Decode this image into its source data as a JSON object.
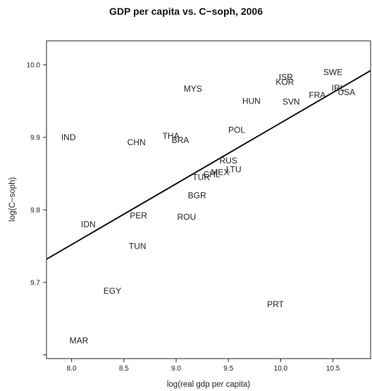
{
  "chart_data": {
    "type": "scatter",
    "title": "GDP per capita vs. C−soph, 2006",
    "xlabel": "log(real gdp per capita)",
    "ylabel": "log(C−soph)",
    "xlim": [
      7.76,
      10.86
    ],
    "ylim": [
      9.595,
      10.033
    ],
    "xticks": [
      "8.0",
      "8.5",
      "9.0",
      "9.5",
      "10.0",
      "10.5"
    ],
    "yticks": [
      "9.7",
      "9.8",
      "9.9",
      "10.0"
    ],
    "grid": false,
    "legend": "none",
    "points": [
      {
        "label": "SWE",
        "x": 10.5,
        "y": 9.99
      },
      {
        "label": "ISR",
        "x": 10.05,
        "y": 9.983
      },
      {
        "label": "KOR",
        "x": 10.04,
        "y": 9.976
      },
      {
        "label": "IRL",
        "x": 10.55,
        "y": 9.968
      },
      {
        "label": "USA",
        "x": 10.63,
        "y": 9.962
      },
      {
        "label": "FRA",
        "x": 10.35,
        "y": 9.958
      },
      {
        "label": "MYS",
        "x": 9.16,
        "y": 9.967
      },
      {
        "label": "HUN",
        "x": 9.72,
        "y": 9.95
      },
      {
        "label": "SVN",
        "x": 10.1,
        "y": 9.949
      },
      {
        "label": "POL",
        "x": 9.58,
        "y": 9.91
      },
      {
        "label": "IND",
        "x": 7.97,
        "y": 9.9
      },
      {
        "label": "CHN",
        "x": 8.62,
        "y": 9.893
      },
      {
        "label": "THA",
        "x": 8.95,
        "y": 9.902
      },
      {
        "label": "BRA",
        "x": 9.04,
        "y": 9.896
      },
      {
        "label": "RUS",
        "x": 9.5,
        "y": 9.868
      },
      {
        "label": "LTU",
        "x": 9.55,
        "y": 9.856
      },
      {
        "label": "CHL",
        "x": 9.34,
        "y": 9.849
      },
      {
        "label": "MEX",
        "x": 9.42,
        "y": 9.852
      },
      {
        "label": "TUR",
        "x": 9.24,
        "y": 9.845
      },
      {
        "label": "BGR",
        "x": 9.2,
        "y": 9.82
      },
      {
        "label": "PER",
        "x": 8.64,
        "y": 9.792
      },
      {
        "label": "ROU",
        "x": 9.1,
        "y": 9.79
      },
      {
        "label": "IDN",
        "x": 8.16,
        "y": 9.78
      },
      {
        "label": "TUN",
        "x": 8.63,
        "y": 9.75
      },
      {
        "label": "EGY",
        "x": 8.39,
        "y": 9.688
      },
      {
        "label": "PRT",
        "x": 9.95,
        "y": 9.67
      },
      {
        "label": "MAR",
        "x": 8.07,
        "y": 9.62
      }
    ],
    "fit_line": {
      "x": [
        7.76,
        10.86
      ],
      "y": [
        9.732,
        9.992
      ]
    }
  }
}
